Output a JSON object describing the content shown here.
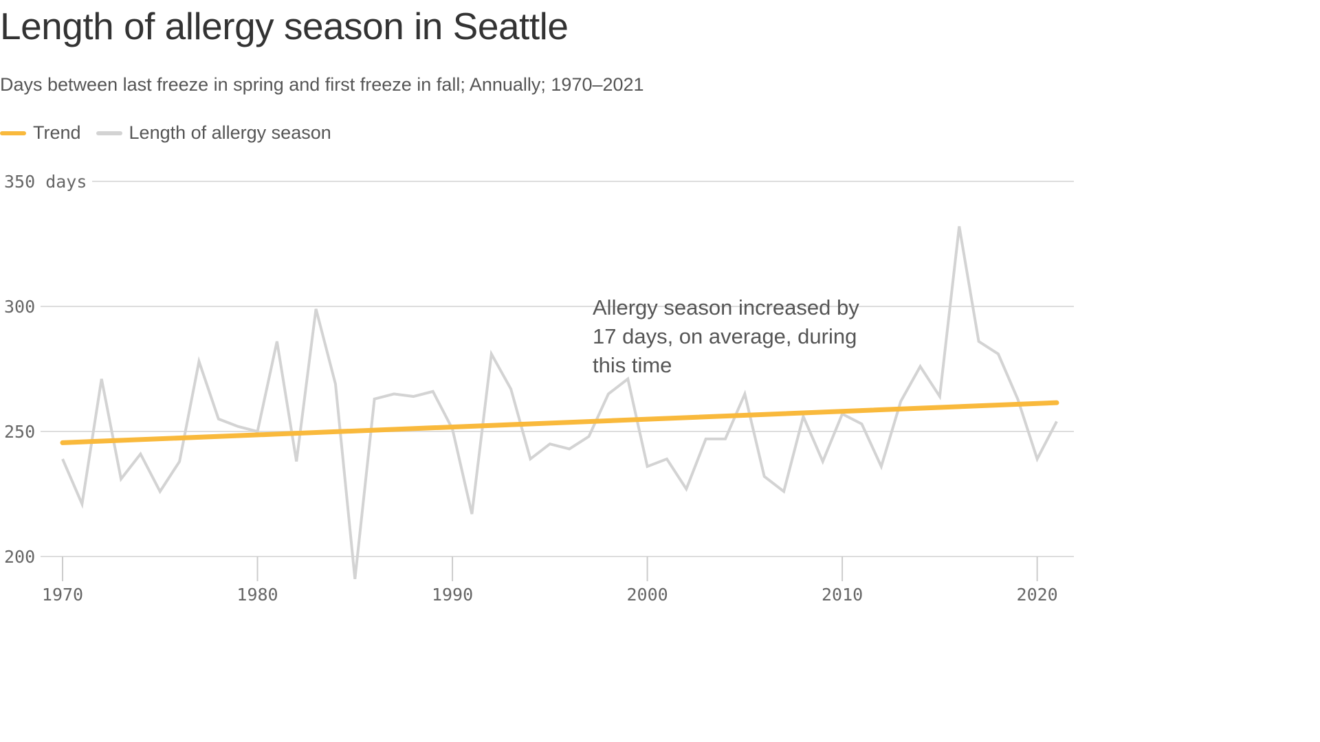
{
  "title": "Length of allergy season in Seattle",
  "subtitle": "Days between last freeze in spring and first freeze in fall; Annually; 1970–2021",
  "legend": [
    {
      "label": "Trend",
      "color": "#f9b93c"
    },
    {
      "label": "Length of allergy season",
      "color": "#d3d3d3"
    }
  ],
  "annotation": {
    "lines": [
      "Allergy season increased by",
      "17 days, on average, during",
      "this time"
    ]
  },
  "chart_data": {
    "type": "line",
    "title": "Length of allergy season in Seattle",
    "ylim": [
      200,
      350
    ],
    "xlim": [
      1970,
      2021
    ],
    "y_ticks": [
      {
        "value": 350,
        "label": "350 days"
      },
      {
        "value": 300,
        "label": "300"
      },
      {
        "value": 250,
        "label": "250"
      },
      {
        "value": 200,
        "label": "200"
      }
    ],
    "x_ticks": [
      {
        "value": 1970,
        "label": "1970"
      },
      {
        "value": 1980,
        "label": "1980"
      },
      {
        "value": 1990,
        "label": "1990"
      },
      {
        "value": 2000,
        "label": "2000"
      },
      {
        "value": 2010,
        "label": "2010"
      },
      {
        "value": 2020,
        "label": "2020"
      }
    ],
    "grid": true,
    "legend_position": "top-left",
    "series": [
      {
        "name": "Length of allergy season",
        "color": "#d3d3d3",
        "x": [
          1970,
          1971,
          1972,
          1973,
          1974,
          1975,
          1976,
          1977,
          1978,
          1979,
          1980,
          1981,
          1982,
          1983,
          1984,
          1985,
          1986,
          1987,
          1988,
          1989,
          1990,
          1991,
          1992,
          1993,
          1994,
          1995,
          1996,
          1997,
          1998,
          1999,
          2000,
          2001,
          2002,
          2003,
          2004,
          2005,
          2006,
          2007,
          2008,
          2009,
          2010,
          2011,
          2012,
          2013,
          2014,
          2015,
          2016,
          2017,
          2018,
          2019,
          2020,
          2021
        ],
        "values": [
          239,
          221,
          271,
          231,
          241,
          226,
          238,
          278,
          255,
          252,
          250,
          286,
          238,
          299,
          269,
          191,
          263,
          265,
          264,
          266,
          251,
          217,
          281,
          267,
          239,
          245,
          243,
          248,
          265,
          271,
          236,
          239,
          227,
          247,
          247,
          265,
          232,
          226,
          256,
          238,
          257,
          253,
          236,
          262,
          276,
          264,
          332,
          286,
          281,
          263,
          239,
          254
        ]
      },
      {
        "name": "Trend",
        "color": "#f9b93c",
        "x": [
          1970,
          2021
        ],
        "values": [
          245.5,
          261.5
        ]
      }
    ]
  }
}
